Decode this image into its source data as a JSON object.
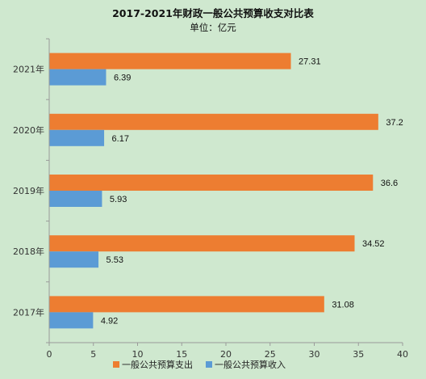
{
  "chart_data": {
    "type": "bar",
    "orientation": "horizontal",
    "title": "2017-2021年财政一般公共预算收支对比表",
    "subtitle": "单位：亿元",
    "categories": [
      "2021年",
      "2020年",
      "2019年",
      "2018年",
      "2017年"
    ],
    "series": [
      {
        "name": "一般公共预算支出",
        "values": [
          27.31,
          37.2,
          36.6,
          34.52,
          31.08
        ],
        "labels": [
          "27.31",
          "37.2",
          "36.6",
          "34.52",
          "31.08"
        ],
        "color": "#ed7d31"
      },
      {
        "name": "一般公共预算收入",
        "values": [
          6.39,
          6.17,
          5.93,
          5.53,
          4.92
        ],
        "labels": [
          "6.39",
          "6.17",
          "5.93",
          "5.53",
          "4.92"
        ],
        "color": "#5b9bd5"
      }
    ],
    "xlim": [
      0,
      40
    ],
    "xticks": [
      0,
      5,
      10,
      15,
      20,
      25,
      30,
      35,
      40
    ],
    "grid": false,
    "legend": "bottom",
    "background": "#cfe8cf"
  }
}
